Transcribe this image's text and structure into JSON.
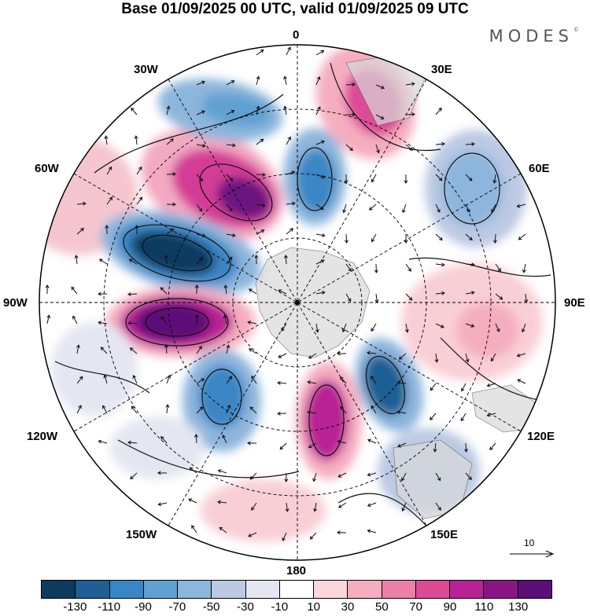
{
  "title": "Base 01/09/2025 00 UTC, valid 01/09/2025 09 UTC",
  "brand": "MODES",
  "brand_mark": "©",
  "longitude_labels": {
    "n": "0",
    "e30": "30E",
    "e60": "60E",
    "e90": "90E",
    "e120": "120E",
    "e150": "150E",
    "s": "180",
    "w150": "150W",
    "w120": "120W",
    "w90": "90W",
    "w60": "60W",
    "w30": "30W"
  },
  "reference_vector": "10",
  "colorbar": {
    "colors": [
      "#0e3a5e",
      "#1f5f94",
      "#3a86c4",
      "#5fa1d2",
      "#8db6dc",
      "#bcc9e3",
      "#e4e6f1",
      "#ffffff",
      "#fbd6dc",
      "#f5adc0",
      "#ec7fa8",
      "#dc4c96",
      "#b92295",
      "#8b1485",
      "#5b0f77"
    ],
    "ticks": [
      "-130",
      "-110",
      "-90",
      "-70",
      "-50",
      "-30",
      "-10",
      "10",
      "30",
      "50",
      "70",
      "90",
      "110",
      "130"
    ]
  }
}
